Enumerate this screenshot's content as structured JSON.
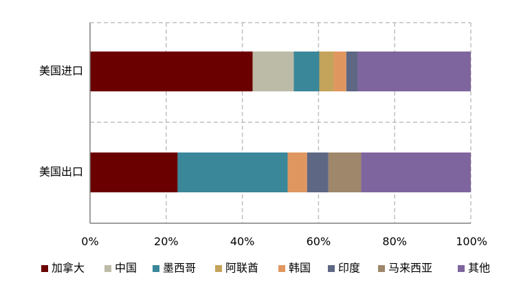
{
  "chart_data": {
    "type": "bar",
    "orientation": "horizontal",
    "stacked": true,
    "normalized": true,
    "categories": [
      "美国进口",
      "美国出口"
    ],
    "series": [
      {
        "name": "加拿大",
        "color": "#6b0000",
        "values": [
          42.7,
          23.0
        ]
      },
      {
        "name": "中国",
        "color": "#bcbba7",
        "values": [
          10.8,
          0
        ]
      },
      {
        "name": "墨西哥",
        "color": "#3a879a",
        "values": [
          6.7,
          28.9
        ]
      },
      {
        "name": "阿联酋",
        "color": "#c4a35a",
        "values": [
          3.8,
          0
        ]
      },
      {
        "name": "韩国",
        "color": "#e0975f",
        "values": [
          3.3,
          5.1
        ]
      },
      {
        "name": "印度",
        "color": "#5e6783",
        "values": [
          3.0,
          5.6
        ]
      },
      {
        "name": "马来西亚",
        "color": "#9e876b",
        "values": [
          0,
          8.6
        ]
      },
      {
        "name": "其他",
        "color": "#7f659e",
        "values": [
          29.7,
          28.8
        ]
      }
    ],
    "x_ticks": [
      "0%",
      "20%",
      "40%",
      "60%",
      "80%",
      "100%"
    ],
    "xlim": [
      0,
      100
    ],
    "grid": true,
    "legend_position": "bottom"
  }
}
